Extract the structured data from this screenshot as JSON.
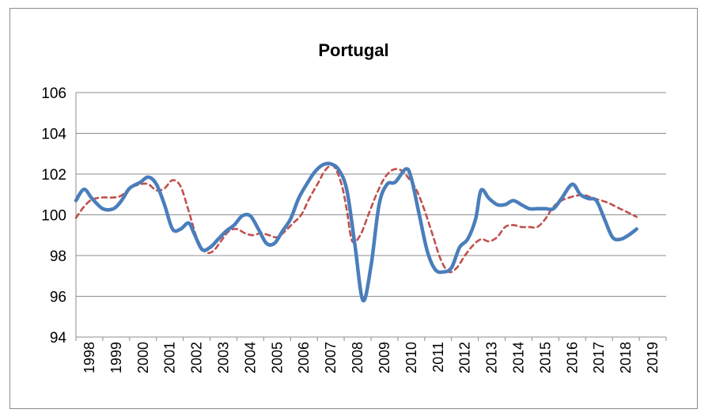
{
  "chart_data": {
    "type": "line",
    "title": "Portugal",
    "xlabel": "",
    "ylabel": "",
    "ylim": [
      94,
      106
    ],
    "yticks": [
      94,
      96,
      98,
      100,
      102,
      104,
      106
    ],
    "xlim": [
      1998,
      2020
    ],
    "xtick_labels": [
      "1998",
      "1999",
      "2000",
      "2001",
      "2002",
      "2003",
      "2004",
      "2005",
      "2006",
      "2007",
      "2008",
      "2009",
      "2010",
      "2011",
      "2012",
      "2013",
      "2014",
      "2015",
      "2016",
      "2017",
      "2018",
      "2019"
    ],
    "grid": "horizontal",
    "legend": "none",
    "series": [
      {
        "color": "#4a7ebb",
        "style": "solid",
        "points": [
          [
            1998.0,
            100.7
          ],
          [
            1998.3,
            101.25
          ],
          [
            1998.6,
            100.8
          ],
          [
            1999.0,
            100.3
          ],
          [
            1999.4,
            100.3
          ],
          [
            1999.7,
            100.7
          ],
          [
            2000.0,
            101.3
          ],
          [
            2000.4,
            101.6
          ],
          [
            2000.7,
            101.85
          ],
          [
            2001.0,
            101.5
          ],
          [
            2001.3,
            100.5
          ],
          [
            2001.6,
            99.3
          ],
          [
            2001.9,
            99.3
          ],
          [
            2002.2,
            99.6
          ],
          [
            2002.4,
            99.1
          ],
          [
            2002.7,
            98.3
          ],
          [
            2003.0,
            98.4
          ],
          [
            2003.3,
            98.8
          ],
          [
            2003.6,
            99.2
          ],
          [
            2003.9,
            99.5
          ],
          [
            2004.2,
            99.95
          ],
          [
            2004.5,
            99.95
          ],
          [
            2004.8,
            99.3
          ],
          [
            2005.1,
            98.6
          ],
          [
            2005.4,
            98.6
          ],
          [
            2005.7,
            99.2
          ],
          [
            2006.0,
            99.8
          ],
          [
            2006.3,
            100.8
          ],
          [
            2006.6,
            101.5
          ],
          [
            2006.9,
            102.1
          ],
          [
            2007.2,
            102.45
          ],
          [
            2007.5,
            102.5
          ],
          [
            2007.8,
            102.2
          ],
          [
            2008.1,
            101.2
          ],
          [
            2008.4,
            98.5
          ],
          [
            2008.7,
            95.8
          ],
          [
            2009.0,
            97.5
          ],
          [
            2009.3,
            100.5
          ],
          [
            2009.6,
            101.5
          ],
          [
            2009.9,
            101.6
          ],
          [
            2010.3,
            102.25
          ],
          [
            2010.5,
            101.8
          ],
          [
            2010.8,
            100.0
          ],
          [
            2011.1,
            98.2
          ],
          [
            2011.4,
            97.3
          ],
          [
            2011.7,
            97.2
          ],
          [
            2012.0,
            97.4
          ],
          [
            2012.3,
            98.4
          ],
          [
            2012.6,
            98.8
          ],
          [
            2012.9,
            99.8
          ],
          [
            2013.1,
            101.2
          ],
          [
            2013.4,
            100.8
          ],
          [
            2013.7,
            100.5
          ],
          [
            2014.0,
            100.5
          ],
          [
            2014.3,
            100.7
          ],
          [
            2014.6,
            100.5
          ],
          [
            2014.9,
            100.3
          ],
          [
            2015.2,
            100.3
          ],
          [
            2015.5,
            100.3
          ],
          [
            2015.8,
            100.3
          ],
          [
            2016.1,
            100.8
          ],
          [
            2016.5,
            101.5
          ],
          [
            2016.8,
            101.0
          ],
          [
            2017.1,
            100.8
          ],
          [
            2017.4,
            100.7
          ],
          [
            2017.7,
            99.8
          ],
          [
            2018.0,
            98.9
          ],
          [
            2018.3,
            98.8
          ],
          [
            2018.6,
            99.0
          ],
          [
            2018.9,
            99.3
          ]
        ]
      },
      {
        "color": "#c0504d",
        "style": "dashed",
        "points": [
          [
            1998.0,
            99.85
          ],
          [
            1998.3,
            100.4
          ],
          [
            1998.6,
            100.75
          ],
          [
            1999.0,
            100.85
          ],
          [
            1999.4,
            100.85
          ],
          [
            1999.7,
            100.95
          ],
          [
            2000.0,
            101.3
          ],
          [
            2000.4,
            101.5
          ],
          [
            2000.7,
            101.5
          ],
          [
            2001.0,
            101.2
          ],
          [
            2001.3,
            101.3
          ],
          [
            2001.6,
            101.7
          ],
          [
            2001.9,
            101.4
          ],
          [
            2002.2,
            100.2
          ],
          [
            2002.5,
            98.9
          ],
          [
            2002.8,
            98.2
          ],
          [
            2003.1,
            98.2
          ],
          [
            2003.4,
            98.7
          ],
          [
            2003.7,
            99.2
          ],
          [
            2004.0,
            99.3
          ],
          [
            2004.3,
            99.1
          ],
          [
            2004.6,
            99.0
          ],
          [
            2004.9,
            99.1
          ],
          [
            2005.2,
            99.0
          ],
          [
            2005.5,
            98.9
          ],
          [
            2005.8,
            99.2
          ],
          [
            2006.1,
            99.6
          ],
          [
            2006.4,
            100.0
          ],
          [
            2006.7,
            100.8
          ],
          [
            2007.0,
            101.5
          ],
          [
            2007.3,
            102.2
          ],
          [
            2007.6,
            102.4
          ],
          [
            2007.9,
            101.5
          ],
          [
            2008.1,
            100.2
          ],
          [
            2008.3,
            98.7
          ],
          [
            2008.6,
            99.0
          ],
          [
            2008.9,
            100.0
          ],
          [
            2009.2,
            101.0
          ],
          [
            2009.5,
            101.8
          ],
          [
            2009.8,
            102.2
          ],
          [
            2010.1,
            102.2
          ],
          [
            2010.4,
            101.8
          ],
          [
            2010.7,
            101.2
          ],
          [
            2011.0,
            100.2
          ],
          [
            2011.3,
            99.0
          ],
          [
            2011.6,
            97.8
          ],
          [
            2011.9,
            97.2
          ],
          [
            2012.2,
            97.4
          ],
          [
            2012.5,
            98.0
          ],
          [
            2012.8,
            98.5
          ],
          [
            2013.1,
            98.8
          ],
          [
            2013.4,
            98.7
          ],
          [
            2013.7,
            98.9
          ],
          [
            2014.0,
            99.4
          ],
          [
            2014.3,
            99.5
          ],
          [
            2014.6,
            99.4
          ],
          [
            2014.9,
            99.4
          ],
          [
            2015.2,
            99.4
          ],
          [
            2015.5,
            99.8
          ],
          [
            2015.8,
            100.4
          ],
          [
            2016.1,
            100.7
          ],
          [
            2016.4,
            100.85
          ],
          [
            2016.7,
            100.95
          ],
          [
            2017.0,
            100.95
          ],
          [
            2017.3,
            100.8
          ],
          [
            2017.6,
            100.7
          ],
          [
            2017.9,
            100.55
          ],
          [
            2018.2,
            100.35
          ],
          [
            2018.6,
            100.1
          ],
          [
            2018.9,
            99.9
          ]
        ]
      }
    ]
  }
}
